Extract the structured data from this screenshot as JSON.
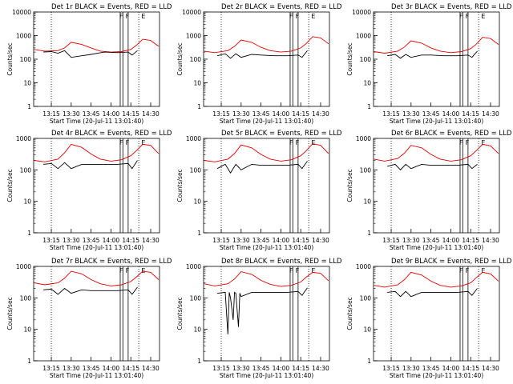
{
  "figure": {
    "start_time_label": "Start Time (20-Jul-11 13:01:40)",
    "ylabel": "Counts/sec",
    "title_suffix": "BLACK = Events, RED = LLD",
    "x_ticks": [
      "13:15",
      "13:30",
      "13:45",
      "14:00",
      "14:15",
      "14:30"
    ],
    "flags": [
      "F",
      "F",
      "E"
    ],
    "colors": {
      "events": "#000000",
      "lld": "#e00000"
    }
  },
  "chart_data": [
    {
      "type": "line",
      "title": "Det 1r BLACK = Events, RED = LLD",
      "xlabel": "Start Time (20-Jul-11 13:01:40)",
      "ylabel": "Counts/sec",
      "y_scale": "log",
      "ylim": [
        1,
        10000
      ],
      "y_tick_labels": [
        "1",
        "10",
        "100",
        "1000",
        "10000"
      ],
      "x_tick_labels": [
        "13:15",
        "13:30",
        "13:45",
        "14:00",
        "14:15",
        "14:30"
      ],
      "series": [
        {
          "color": "red",
          "x": [
            "13:02",
            "13:10",
            "13:20",
            "13:25",
            "13:30",
            "13:38",
            "13:45",
            "13:52",
            "14:00",
            "14:08",
            "14:15",
            "14:19",
            "14:24",
            "14:30",
            "14:36"
          ],
          "values": [
            260,
            220,
            230,
            300,
            520,
            420,
            300,
            220,
            200,
            210,
            260,
            380,
            700,
            620,
            350
          ]
        },
        {
          "color": "black",
          "x": [
            "13:09",
            "13:15",
            "13:20",
            "13:25",
            "13:30",
            "13:38",
            "13:45",
            "13:55",
            "14:05",
            "14:13",
            "14:16",
            "14:20"
          ],
          "values": [
            200,
            210,
            180,
            230,
            120,
            140,
            160,
            200,
            190,
            200,
            150,
            230
          ]
        }
      ]
    },
    {
      "type": "line",
      "title": "Det 2r BLACK = Events, RED = LLD",
      "xlabel": "Start Time (20-Jul-11 13:01:40)",
      "ylabel": "Counts/sec",
      "y_scale": "log",
      "ylim": [
        1,
        10000
      ],
      "y_tick_labels": [
        "1",
        "10",
        "100",
        "1000",
        "10000"
      ],
      "x_tick_labels": [
        "13:15",
        "13:30",
        "13:45",
        "14:00",
        "14:15",
        "14:30"
      ],
      "series": [
        {
          "color": "red",
          "x": [
            "13:02",
            "13:10",
            "13:20",
            "13:25",
            "13:30",
            "13:38",
            "13:45",
            "13:52",
            "14:00",
            "14:08",
            "14:15",
            "14:19",
            "14:24",
            "14:30",
            "14:36"
          ],
          "values": [
            220,
            190,
            230,
            350,
            650,
            520,
            320,
            230,
            200,
            220,
            300,
            450,
            900,
            800,
            450
          ]
        },
        {
          "color": "black",
          "x": [
            "13:12",
            "13:18",
            "13:22",
            "13:26",
            "13:30",
            "13:38",
            "13:45",
            "13:55",
            "14:05",
            "14:13",
            "14:16",
            "14:20"
          ],
          "values": [
            140,
            170,
            110,
            170,
            120,
            160,
            150,
            140,
            140,
            150,
            120,
            230
          ]
        }
      ]
    },
    {
      "type": "line",
      "title": "Det 3r BLACK = Events, RED = LLD",
      "xlabel": "Start Time (20-Jul-11 13:01:40)",
      "ylabel": "Counts/sec",
      "y_scale": "log",
      "ylim": [
        1,
        10000
      ],
      "y_tick_labels": [
        "1",
        "10",
        "100",
        "1000",
        "10000"
      ],
      "x_tick_labels": [
        "13:15",
        "13:30",
        "13:45",
        "14:00",
        "14:15",
        "14:30"
      ],
      "series": [
        {
          "color": "red",
          "x": [
            "13:02",
            "13:10",
            "13:20",
            "13:25",
            "13:30",
            "13:38",
            "13:45",
            "13:52",
            "14:00",
            "14:08",
            "14:15",
            "14:19",
            "14:24",
            "14:30",
            "14:36"
          ],
          "values": [
            210,
            180,
            220,
            330,
            600,
            480,
            300,
            220,
            190,
            210,
            280,
            420,
            850,
            750,
            420
          ]
        },
        {
          "color": "black",
          "x": [
            "13:12",
            "13:18",
            "13:22",
            "13:26",
            "13:30",
            "13:38",
            "13:45",
            "13:55",
            "14:05",
            "14:13",
            "14:16",
            "14:20"
          ],
          "values": [
            140,
            160,
            110,
            160,
            120,
            150,
            150,
            140,
            140,
            150,
            120,
            220
          ]
        }
      ]
    },
    {
      "type": "line",
      "title": "Det 4r BLACK = Events, RED = LLD",
      "xlabel": "Start Time (20-Jul-11 13:01:40)",
      "ylabel": "Counts/sec",
      "y_scale": "log",
      "ylim": [
        1,
        1000
      ],
      "y_tick_labels": [
        "1",
        "10",
        "100",
        "1000"
      ],
      "x_tick_labels": [
        "13:15",
        "13:30",
        "13:45",
        "14:00",
        "14:15",
        "14:30"
      ],
      "series": [
        {
          "color": "red",
          "x": [
            "13:02",
            "13:10",
            "13:20",
            "13:25",
            "13:30",
            "13:38",
            "13:45",
            "13:52",
            "14:00",
            "14:08",
            "14:15",
            "14:19",
            "14:24",
            "14:30",
            "14:36"
          ],
          "values": [
            200,
            180,
            220,
            350,
            650,
            520,
            320,
            220,
            190,
            210,
            280,
            400,
            650,
            600,
            330
          ]
        },
        {
          "color": "black",
          "x": [
            "13:09",
            "13:15",
            "13:20",
            "13:25",
            "13:30",
            "13:38",
            "13:45",
            "13:55",
            "14:05",
            "14:13",
            "14:16",
            "14:20"
          ],
          "values": [
            150,
            160,
            110,
            170,
            110,
            150,
            150,
            150,
            150,
            160,
            110,
            200
          ]
        }
      ]
    },
    {
      "type": "line",
      "title": "Det 5r BLACK = Events, RED = LLD",
      "xlabel": "Start Time (20-Jul-11 13:01:40)",
      "ylabel": "Counts/sec",
      "y_scale": "log",
      "ylim": [
        1,
        1000
      ],
      "y_tick_labels": [
        "1",
        "10",
        "100",
        "1000"
      ],
      "x_tick_labels": [
        "13:15",
        "13:30",
        "13:45",
        "14:00",
        "14:15",
        "14:30"
      ],
      "series": [
        {
          "color": "red",
          "x": [
            "13:02",
            "13:10",
            "13:20",
            "13:25",
            "13:30",
            "13:38",
            "13:45",
            "13:52",
            "14:00",
            "14:08",
            "14:15",
            "14:19",
            "14:24",
            "14:30",
            "14:36"
          ],
          "values": [
            200,
            180,
            220,
            330,
            620,
            500,
            310,
            220,
            190,
            210,
            280,
            400,
            680,
            600,
            330
          ]
        },
        {
          "color": "black",
          "x": [
            "13:12",
            "13:18",
            "13:22",
            "13:26",
            "13:30",
            "13:38",
            "13:45",
            "13:55",
            "14:05",
            "14:13",
            "14:16",
            "14:20"
          ],
          "values": [
            110,
            150,
            80,
            150,
            100,
            150,
            140,
            140,
            140,
            150,
            110,
            190
          ]
        }
      ]
    },
    {
      "type": "line",
      "title": "Det 6r BLACK = Events, RED = LLD",
      "xlabel": "Start Time (20-Jul-11 13:01:40)",
      "ylabel": "Counts/sec",
      "y_scale": "log",
      "ylim": [
        1,
        1000
      ],
      "y_tick_labels": [
        "1",
        "10",
        "100",
        "1000"
      ],
      "x_tick_labels": [
        "13:15",
        "13:30",
        "13:45",
        "14:00",
        "14:15",
        "14:30"
      ],
      "series": [
        {
          "color": "red",
          "x": [
            "13:02",
            "13:10",
            "13:20",
            "13:25",
            "13:30",
            "13:38",
            "13:45",
            "13:52",
            "14:00",
            "14:08",
            "14:15",
            "14:19",
            "14:24",
            "14:30",
            "14:36"
          ],
          "values": [
            220,
            190,
            230,
            340,
            600,
            500,
            310,
            220,
            190,
            210,
            280,
            400,
            650,
            580,
            330
          ]
        },
        {
          "color": "black",
          "x": [
            "13:12",
            "13:18",
            "13:22",
            "13:26",
            "13:30",
            "13:38",
            "13:45",
            "13:55",
            "14:05",
            "14:13",
            "14:16",
            "14:20"
          ],
          "values": [
            130,
            150,
            100,
            150,
            110,
            150,
            140,
            140,
            140,
            150,
            110,
            150
          ]
        }
      ]
    },
    {
      "type": "line",
      "title": "Det 7r BLACK = Events, RED = LLD",
      "xlabel": "Start Time (20-Jul-11 13:01:40)",
      "ylabel": "Counts/sec",
      "y_scale": "log",
      "ylim": [
        1,
        1000
      ],
      "y_tick_labels": [
        "1",
        "10",
        "100",
        "1000"
      ],
      "x_tick_labels": [
        "13:15",
        "13:30",
        "13:45",
        "14:00",
        "14:15",
        "14:30"
      ],
      "series": [
        {
          "color": "red",
          "x": [
            "13:02",
            "13:10",
            "13:20",
            "13:25",
            "13:30",
            "13:38",
            "13:45",
            "13:52",
            "14:00",
            "14:08",
            "14:15",
            "14:19",
            "14:24",
            "14:30",
            "14:36"
          ],
          "values": [
            300,
            260,
            300,
            420,
            700,
            580,
            380,
            280,
            240,
            260,
            330,
            450,
            700,
            650,
            380
          ]
        },
        {
          "color": "black",
          "x": [
            "13:09",
            "13:15",
            "13:20",
            "13:25",
            "13:30",
            "13:38",
            "13:45",
            "13:55",
            "14:05",
            "14:13",
            "14:16",
            "14:20"
          ],
          "values": [
            180,
            190,
            130,
            200,
            140,
            180,
            170,
            170,
            170,
            180,
            130,
            220
          ]
        }
      ]
    },
    {
      "type": "line",
      "title": "Det 8r BLACK = Events, RED = LLD",
      "xlabel": "Start Time (20-Jul-11 13:01:40)",
      "ylabel": "Counts/sec",
      "y_scale": "log",
      "ylim": [
        1,
        1000
      ],
      "y_tick_labels": [
        "1",
        "10",
        "100",
        "1000"
      ],
      "x_tick_labels": [
        "13:15",
        "13:30",
        "13:45",
        "14:00",
        "14:15",
        "14:30"
      ],
      "series": [
        {
          "color": "red",
          "x": [
            "13:02",
            "13:10",
            "13:20",
            "13:25",
            "13:30",
            "13:38",
            "13:45",
            "13:52",
            "14:00",
            "14:08",
            "14:15",
            "14:19",
            "14:24",
            "14:30",
            "14:36"
          ],
          "values": [
            280,
            240,
            280,
            400,
            680,
            560,
            360,
            270,
            230,
            250,
            320,
            450,
            650,
            600,
            350
          ]
        },
        {
          "color": "black",
          "x": [
            "13:12",
            "13:18",
            "13:20",
            "13:21",
            "13:22",
            "13:24",
            "13:25",
            "13:26",
            "13:28",
            "13:29",
            "13:30",
            "13:38",
            "13:45",
            "13:55",
            "14:05",
            "14:13",
            "14:16",
            "14:20"
          ],
          "values": [
            140,
            150,
            7,
            150,
            100,
            20,
            150,
            140,
            12,
            140,
            110,
            150,
            150,
            150,
            150,
            160,
            120,
            210
          ]
        }
      ]
    },
    {
      "type": "line",
      "title": "Det 9r BLACK = Events, RED = LLD",
      "xlabel": "Start Time (20-Jul-11 13:01:40)",
      "ylabel": "Counts/sec",
      "y_scale": "log",
      "ylim": [
        1,
        1000
      ],
      "y_tick_labels": [
        "1",
        "10",
        "100",
        "1000"
      ],
      "x_tick_labels": [
        "13:15",
        "13:30",
        "13:45",
        "14:00",
        "14:15",
        "14:30"
      ],
      "series": [
        {
          "color": "red",
          "x": [
            "13:02",
            "13:10",
            "13:20",
            "13:25",
            "13:30",
            "13:38",
            "13:45",
            "13:52",
            "14:00",
            "14:08",
            "14:15",
            "14:19",
            "14:24",
            "14:30",
            "14:36"
          ],
          "values": [
            250,
            220,
            260,
            380,
            650,
            530,
            340,
            250,
            220,
            240,
            300,
            430,
            650,
            580,
            340
          ]
        },
        {
          "color": "black",
          "x": [
            "13:12",
            "13:18",
            "13:22",
            "13:26",
            "13:30",
            "13:38",
            "13:45",
            "13:55",
            "14:05",
            "14:13",
            "14:16",
            "14:20"
          ],
          "values": [
            150,
            160,
            110,
            160,
            110,
            150,
            150,
            150,
            150,
            160,
            120,
            200
          ]
        }
      ]
    }
  ]
}
